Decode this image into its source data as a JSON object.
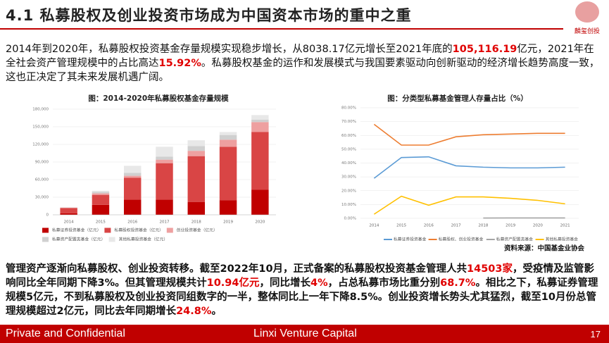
{
  "header": {
    "title": "4.1 私募股权及创业投资市场成为中国资本市场的重中之重",
    "logo": "麟玺创投"
  },
  "intro": {
    "segments": [
      {
        "text": "2014年到2020年，私募股权投资基金存量规模实现稳步增长，从8038.17亿元增长至2021年底的"
      },
      {
        "text": "105,116.19",
        "highlight": true
      },
      {
        "text": "亿元，2021年在全社会资产管理规模中的占比高达"
      },
      {
        "text": "15.92%",
        "highlight": true
      },
      {
        "text": "。私募股权基金的运作和发展模式与我国要素驱动向创新驱动的经济增长趋势高度一致，这也正决定了其未来发展机遇广阔。"
      }
    ]
  },
  "chart_data": [
    {
      "type": "bar",
      "stacked": true,
      "title": "图：2014-2020年私募股权基金存量规模",
      "categories": [
        "2014",
        "2015",
        "2016",
        "2017",
        "2018",
        "2019",
        "2020"
      ],
      "series": [
        {
          "name": "私募证券投资基金（亿元）",
          "color": "#c00000",
          "values": [
            2500,
            17000,
            26000,
            26000,
            22000,
            25000,
            43000
          ]
        },
        {
          "name": "私募股权投资基金（亿元）",
          "color": "#d94545",
          "values": [
            9000,
            17000,
            37000,
            62000,
            78000,
            91000,
            98000
          ]
        },
        {
          "name": "创业投资基金（亿元）",
          "color": "#eea0a0",
          "values": [
            800,
            2500,
            3500,
            6000,
            9000,
            12000,
            17000
          ]
        },
        {
          "name": "私募资产配置类基金（亿元）",
          "color": "#d0d0d0",
          "values": [
            300,
            2500,
            5000,
            5000,
            8000,
            8000,
            4000
          ]
        },
        {
          "name": "其他私募投资基金（亿元）",
          "color": "#e8e8e8",
          "values": [
            200,
            2000,
            12000,
            17000,
            10000,
            5000,
            8000
          ]
        }
      ],
      "ylim": [
        0,
        180000
      ],
      "yticks": [
        0,
        {
          "value": 30000,
          "label": "30,000"
        },
        {
          "value": 60000,
          "label": "60,000"
        },
        {
          "value": 90000,
          "label": "90,000"
        },
        {
          "value": 120000,
          "label": "120,000"
        },
        {
          "value": 150000,
          "label": "150,000"
        },
        {
          "value": 180000,
          "label": "180,000"
        }
      ],
      "grid": true
    },
    {
      "type": "line",
      "title": "图：分类型私募基金管理人存量占比（%）",
      "categories": [
        "2014",
        "2015",
        "2016",
        "2017",
        "2018",
        "2019",
        "2020",
        "2021"
      ],
      "series": [
        {
          "name": "私募证券投资基金",
          "color": "#5b9bd5",
          "values": [
            29,
            44,
            44.5,
            38,
            37,
            36.5,
            36.5,
            37
          ]
        },
        {
          "name": "私募股权、创业投资基金",
          "color": "#ed7d31",
          "values": [
            68,
            53,
            53,
            59,
            60.5,
            61,
            61.5,
            61.5
          ]
        },
        {
          "name": "私募资产配置类基金",
          "color": "#a5a5a5",
          "values": [
            null,
            null,
            null,
            null,
            0.2,
            0.3,
            0.3,
            0.3
          ]
        },
        {
          "name": "其他私募投资基金",
          "color": "#ffc000",
          "values": [
            3,
            16,
            9.5,
            15.5,
            15.5,
            14.5,
            13,
            10.5
          ]
        }
      ],
      "ylim": [
        0,
        80
      ],
      "yticks": [
        {
          "value": 0,
          "label": "0.00%"
        },
        {
          "value": 10,
          "label": "10.00%"
        },
        {
          "value": 20,
          "label": "20.00%"
        },
        {
          "value": 30,
          "label": "30.00%"
        },
        {
          "value": 40,
          "label": "40.00%"
        },
        {
          "value": 50,
          "label": "50.00%"
        },
        {
          "value": 60,
          "label": "60.00%"
        },
        {
          "value": 70,
          "label": "70.00%"
        },
        {
          "value": 80,
          "label": "80.00%"
        }
      ],
      "grid": true,
      "source": "资料来源：中国基金业协会"
    }
  ],
  "body": {
    "segments": [
      {
        "text": "管理资产逐渐向私募股权、创业投资转移。截至2022年10月，正式备案的私募股权投资基金管理人共"
      },
      {
        "text": "14503家",
        "highlight": true
      },
      {
        "text": "，受疫情及监管影响同比全年同期下降3%。但其管理规模共计"
      },
      {
        "text": "10.94亿元",
        "highlight": true
      },
      {
        "text": "，同比增长"
      },
      {
        "text": "4%",
        "highlight": true
      },
      {
        "text": "，占总私募市场比重分别"
      },
      {
        "text": "68.7%",
        "highlight": true
      },
      {
        "text": "。相比之下，私募证券管理规模5亿元，不到私募股权及创业投资同组数字的一半，整体同比上一年下降8.5%。创业投资增长势头尤其猛烈，截至10月份总管理规模超过2亿元，同比去年同期增长"
      },
      {
        "text": "24.8%",
        "highlight": true
      },
      {
        "text": "。"
      }
    ]
  },
  "footer": {
    "left": "Private and Confidential",
    "center": "Linxi Venture Capital",
    "page": "17"
  }
}
